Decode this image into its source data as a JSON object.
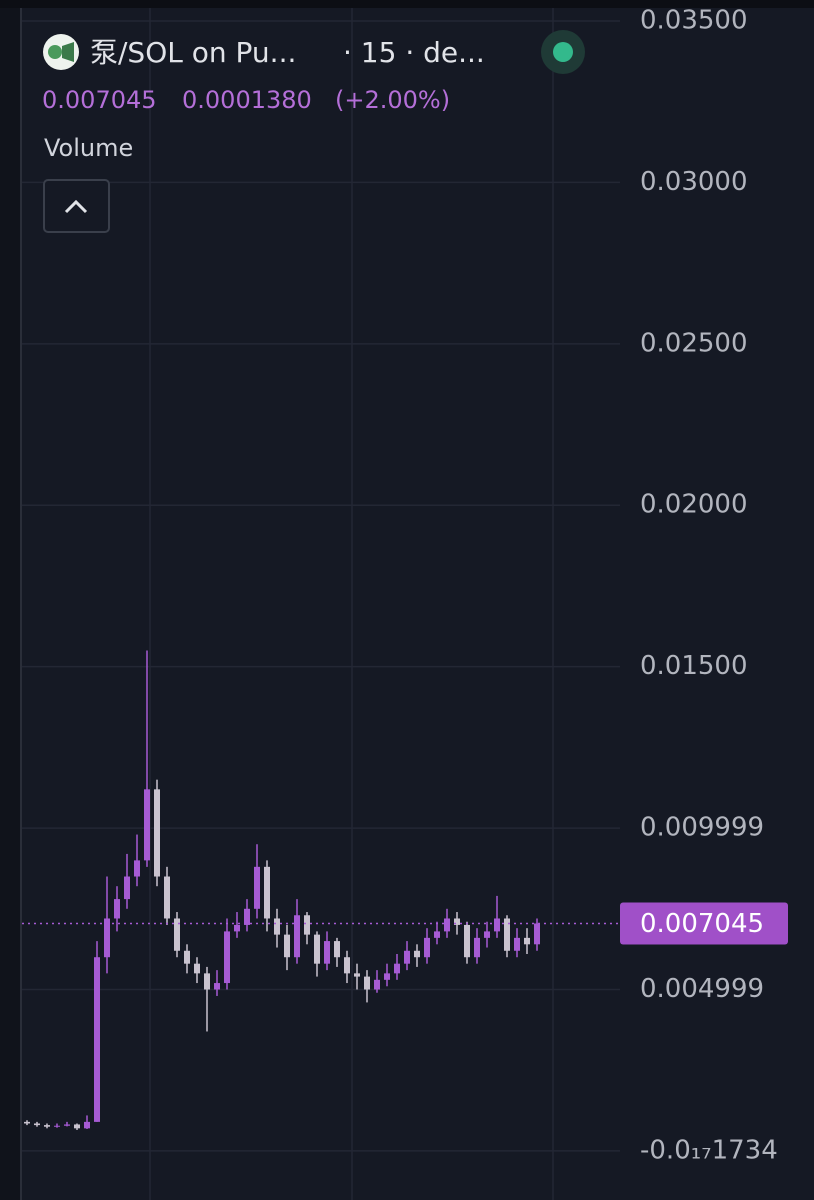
{
  "header": {
    "title": "泵/SOL on Pu...",
    "interval": "· 15 · de...",
    "price": "0.007045",
    "change": "0.0001380",
    "change_pct": "(+2.00%)",
    "indicator": "Volume"
  },
  "chart_data": {
    "type": "candlestick",
    "up_color": "#a65bd4",
    "down_color": "#c9c3cf",
    "grid": true,
    "ylim": [
      -0.00152,
      0.03565
    ],
    "yticks": [
      {
        "value": 0.035,
        "label": "0.03500"
      },
      {
        "value": 0.03,
        "label": "0.03000"
      },
      {
        "value": 0.025,
        "label": "0.02500"
      },
      {
        "value": 0.02,
        "label": "0.02000"
      },
      {
        "value": 0.015,
        "label": "0.01500"
      },
      0.009999,
      0.004999,
      {
        "value": -1.734e-18,
        "label": "-0.0₁₇1734"
      }
    ],
    "last_price": 0.007045,
    "open": [
      0.0009,
      0.00085,
      0.0008,
      0.00075,
      0.00078,
      0.00082,
      0.0007,
      0.0009,
      0.006,
      0.0072,
      0.0078,
      0.0085,
      0.009,
      0.0112,
      0.0085,
      0.0072,
      0.0062,
      0.0058,
      0.0055,
      0.005,
      0.0052,
      0.0068,
      0.007,
      0.0075,
      0.0088,
      0.0072,
      0.0067,
      0.006,
      0.0073,
      0.0067,
      0.0058,
      0.0065,
      0.006,
      0.0055,
      0.0054,
      0.005,
      0.0053,
      0.0055,
      0.0058,
      0.0062,
      0.006,
      0.0066,
      0.0068,
      0.0072,
      0.007,
      0.006,
      0.0066,
      0.0068,
      0.0072,
      0.0062,
      0.0066,
      0.0064
    ],
    "high": [
      0.00095,
      0.0009,
      0.00085,
      0.00085,
      0.0009,
      0.00085,
      0.0011,
      0.0065,
      0.0085,
      0.0082,
      0.0092,
      0.0098,
      0.0155,
      0.0115,
      0.0088,
      0.0074,
      0.0064,
      0.006,
      0.0057,
      0.0056,
      0.0072,
      0.0074,
      0.0078,
      0.0095,
      0.009,
      0.0075,
      0.007,
      0.0078,
      0.0074,
      0.0068,
      0.0068,
      0.0066,
      0.0062,
      0.0058,
      0.0056,
      0.0056,
      0.0058,
      0.0061,
      0.0065,
      0.0064,
      0.0069,
      0.0071,
      0.0075,
      0.0074,
      0.0071,
      0.0069,
      0.0071,
      0.0079,
      0.0073,
      0.0069,
      0.0069,
      0.0072
    ],
    "low": [
      0.0008,
      0.00075,
      0.0007,
      0.00072,
      0.00076,
      0.00065,
      0.00068,
      0.0009,
      0.0055,
      0.0068,
      0.0075,
      0.0082,
      0.0088,
      0.0082,
      0.007,
      0.006,
      0.0055,
      0.0052,
      0.0037,
      0.0048,
      0.005,
      0.0066,
      0.0068,
      0.0072,
      0.0068,
      0.0063,
      0.0056,
      0.0058,
      0.0064,
      0.0054,
      0.0056,
      0.0057,
      0.0052,
      0.005,
      0.0046,
      0.0049,
      0.0051,
      0.0053,
      0.0056,
      0.0057,
      0.0058,
      0.0064,
      0.0066,
      0.0067,
      0.0058,
      0.0058,
      0.0063,
      0.0066,
      0.006,
      0.006,
      0.0061,
      0.0062
    ],
    "close": [
      0.00085,
      0.0008,
      0.00075,
      0.00078,
      0.00082,
      0.0007,
      0.0009,
      0.006,
      0.0072,
      0.0078,
      0.0085,
      0.009,
      0.0112,
      0.0085,
      0.0072,
      0.0062,
      0.0058,
      0.0055,
      0.005,
      0.0052,
      0.0068,
      0.007,
      0.0075,
      0.0088,
      0.0072,
      0.0067,
      0.006,
      0.0073,
      0.0067,
      0.0058,
      0.0065,
      0.006,
      0.0055,
      0.0054,
      0.005,
      0.0053,
      0.0055,
      0.0058,
      0.0062,
      0.006,
      0.0066,
      0.0068,
      0.0072,
      0.007,
      0.006,
      0.0066,
      0.0068,
      0.0072,
      0.0062,
      0.0066,
      0.0064,
      0.007045
    ]
  }
}
